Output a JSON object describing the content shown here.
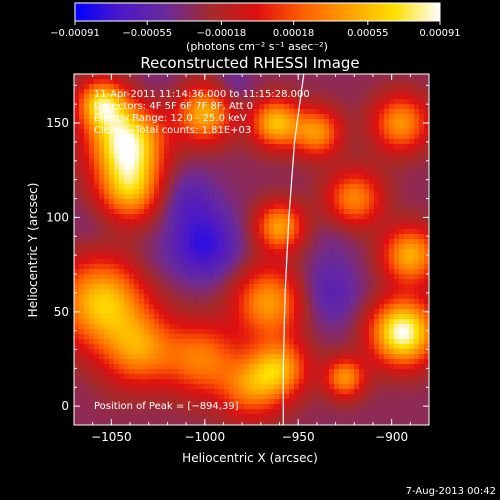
{
  "chart_data": {
    "type": "heatmap",
    "title": "Reconstructed RHESSI Image",
    "xlabel": "Heliocentric X (arcsec)",
    "ylabel": "Heliocentric Y (arcsec)",
    "xlim": [
      -1070,
      -880
    ],
    "ylim": [
      -10,
      176
    ],
    "x_ticks": [
      -1050,
      -1000,
      -950,
      -900
    ],
    "y_ticks": [
      0,
      50,
      100,
      150
    ],
    "x_tick_labels": [
      "−1050",
      "−1000",
      "−950",
      "−900"
    ],
    "y_tick_labels": [
      "0",
      "50",
      "100",
      "150"
    ],
    "colorbar": {
      "ticks": [
        -0.00091,
        -0.00055,
        -0.00018,
        0.00018,
        0.00055,
        0.00091
      ],
      "tick_labels": [
        "−0.00091",
        "−0.00055",
        "−0.00018",
        "0.00018",
        "0.00055",
        "0.00091"
      ],
      "units_text": "(photons cm⁻² s⁻¹ asec⁻²)",
      "range": [
        -0.00091,
        0.00091
      ]
    },
    "colormap_stops": [
      "#0000ff",
      "#4b18c8",
      "#6a2a9a",
      "#a52a2a",
      "#e01010",
      "#ff6000",
      "#ffa000",
      "#ffe000",
      "#ffffff"
    ],
    "annotations": [
      "11-Apr-2011 11:14:36.000 to 11:15:28.000",
      "Detectors: 4F 5F 6F 7F 8F, Att 0",
      "Energy Range: 12.0 - 25.0 keV",
      "Clean    Total counts: 1.81E+03"
    ],
    "peak_label": "Position of Peak = [−894,39]",
    "peak_position": [
      -894,
      39
    ],
    "footer_date": "7-Aug-2013 00:42",
    "limb_curve": [
      [
        -947,
        176
      ],
      [
        -952,
        140
      ],
      [
        -955,
        100
      ],
      [
        -957,
        60
      ],
      [
        -958,
        20
      ],
      [
        -958,
        -10
      ]
    ],
    "blobs": [
      {
        "x": -1042,
        "y": 140,
        "r": 18,
        "v": 0.00085
      },
      {
        "x": -1055,
        "y": 160,
        "r": 12,
        "v": 0.0006
      },
      {
        "x": -1040,
        "y": 115,
        "r": 16,
        "v": 0.0005
      },
      {
        "x": -1055,
        "y": 55,
        "r": 22,
        "v": 0.0006
      },
      {
        "x": -1035,
        "y": 30,
        "r": 18,
        "v": 0.00035
      },
      {
        "x": -1000,
        "y": 155,
        "r": 14,
        "v": 0.0005
      },
      {
        "x": -1002,
        "y": 25,
        "r": 18,
        "v": 0.0003
      },
      {
        "x": -975,
        "y": 10,
        "r": 16,
        "v": 0.0003
      },
      {
        "x": -962,
        "y": 150,
        "r": 12,
        "v": 0.00055
      },
      {
        "x": -960,
        "y": 95,
        "r": 12,
        "v": 0.00045
      },
      {
        "x": -965,
        "y": 55,
        "r": 18,
        "v": 0.00045
      },
      {
        "x": -960,
        "y": 20,
        "r": 14,
        "v": 0.0004
      },
      {
        "x": -940,
        "y": 145,
        "r": 12,
        "v": 0.0004
      },
      {
        "x": -920,
        "y": 110,
        "r": 14,
        "v": 0.00035
      },
      {
        "x": -895,
        "y": 150,
        "r": 14,
        "v": 0.0004
      },
      {
        "x": -894,
        "y": 39,
        "r": 16,
        "v": 0.00091
      },
      {
        "x": -890,
        "y": 80,
        "r": 14,
        "v": 0.0005
      },
      {
        "x": -925,
        "y": 15,
        "r": 10,
        "v": 0.0004
      },
      {
        "x": -1010,
        "y": 110,
        "r": 16,
        "v": -0.00055
      },
      {
        "x": -1000,
        "y": 85,
        "r": 18,
        "v": -0.00075
      },
      {
        "x": -1060,
        "y": 95,
        "r": 14,
        "v": -0.0004
      },
      {
        "x": -1025,
        "y": 175,
        "r": 14,
        "v": -0.0004
      },
      {
        "x": -985,
        "y": 170,
        "r": 10,
        "v": -0.0005
      },
      {
        "x": -935,
        "y": 60,
        "r": 18,
        "v": -0.0006
      },
      {
        "x": -930,
        "y": 90,
        "r": 12,
        "v": -0.0004
      },
      {
        "x": -1030,
        "y": 75,
        "r": 14,
        "v": -0.0004
      },
      {
        "x": -1050,
        "y": 5,
        "r": 12,
        "v": -0.0003
      },
      {
        "x": -940,
        "y": 25,
        "r": 10,
        "v": -0.0003
      },
      {
        "x": -905,
        "y": 130,
        "r": 12,
        "v": -0.0003
      }
    ]
  }
}
